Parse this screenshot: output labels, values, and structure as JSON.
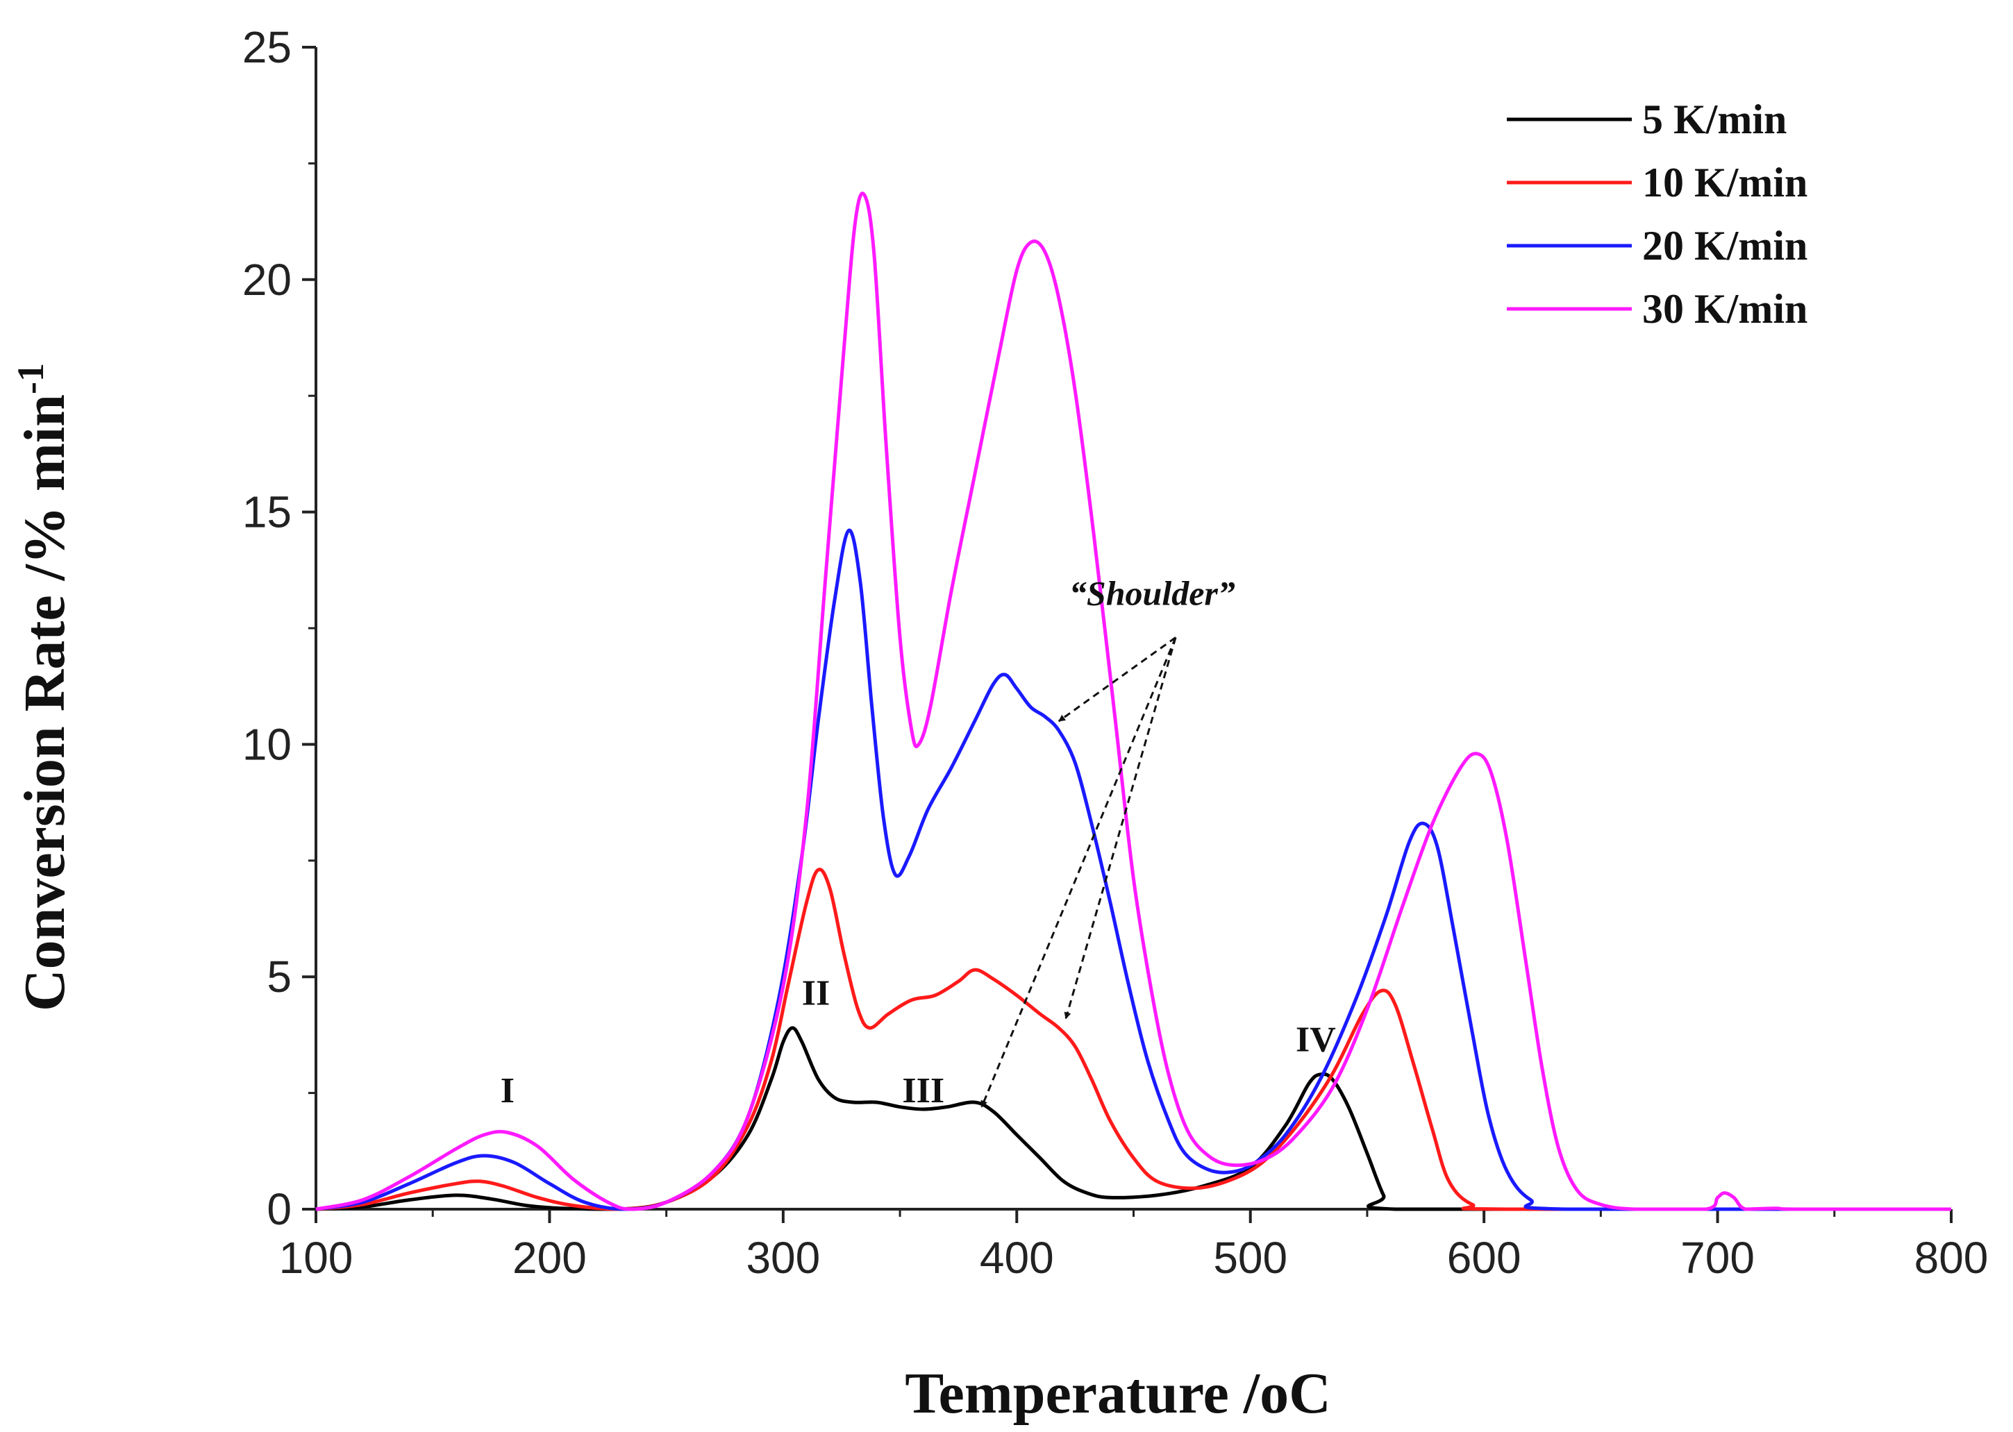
{
  "chart_data": {
    "type": "line",
    "title": "",
    "xlabel": "Temperature /",
    "xlabel_unit": "oC",
    "ylabel": "Conversion Rate /% min",
    "ylabel_sup": "-1",
    "xlim": [
      100,
      800
    ],
    "ylim": [
      0,
      25
    ],
    "xticks": [
      100,
      200,
      300,
      400,
      500,
      600,
      700,
      800
    ],
    "yticks": [
      0,
      5,
      10,
      15,
      20,
      25
    ],
    "legend_position": "top-right",
    "grid": false,
    "series": [
      {
        "name": "5 K/min",
        "color": "#000000",
        "points": [
          [
            100,
            0
          ],
          [
            120,
            0.05
          ],
          [
            140,
            0.2
          ],
          [
            160,
            0.3
          ],
          [
            175,
            0.22
          ],
          [
            190,
            0.08
          ],
          [
            205,
            0.02
          ],
          [
            230,
            0
          ],
          [
            250,
            0.15
          ],
          [
            270,
            0.7
          ],
          [
            285,
            1.6
          ],
          [
            295,
            2.8
          ],
          [
            300,
            3.6
          ],
          [
            304,
            3.9
          ],
          [
            308,
            3.6
          ],
          [
            315,
            2.8
          ],
          [
            322,
            2.4
          ],
          [
            330,
            2.3
          ],
          [
            340,
            2.3
          ],
          [
            350,
            2.2
          ],
          [
            360,
            2.15
          ],
          [
            370,
            2.2
          ],
          [
            382,
            2.3
          ],
          [
            390,
            2.1
          ],
          [
            400,
            1.6
          ],
          [
            410,
            1.1
          ],
          [
            420,
            0.6
          ],
          [
            430,
            0.35
          ],
          [
            440,
            0.25
          ],
          [
            460,
            0.3
          ],
          [
            480,
            0.5
          ],
          [
            500,
            0.9
          ],
          [
            515,
            1.8
          ],
          [
            525,
            2.7
          ],
          [
            530,
            2.9
          ],
          [
            535,
            2.8
          ],
          [
            542,
            2.2
          ],
          [
            550,
            1.2
          ],
          [
            557,
            0.3
          ],
          [
            562,
            0
          ],
          [
            700,
            0
          ],
          [
            800,
            0
          ]
        ]
      },
      {
        "name": "10 K/min",
        "color": "#ff1a1a",
        "points": [
          [
            100,
            0
          ],
          [
            120,
            0.1
          ],
          [
            140,
            0.35
          ],
          [
            160,
            0.55
          ],
          [
            170,
            0.6
          ],
          [
            180,
            0.5
          ],
          [
            195,
            0.25
          ],
          [
            210,
            0.08
          ],
          [
            230,
            0
          ],
          [
            250,
            0.15
          ],
          [
            270,
            0.7
          ],
          [
            285,
            1.8
          ],
          [
            295,
            3.2
          ],
          [
            302,
            4.8
          ],
          [
            310,
            6.6
          ],
          [
            315,
            7.3
          ],
          [
            320,
            6.9
          ],
          [
            326,
            5.5
          ],
          [
            332,
            4.3
          ],
          [
            337,
            3.9
          ],
          [
            345,
            4.2
          ],
          [
            355,
            4.5
          ],
          [
            365,
            4.6
          ],
          [
            375,
            4.9
          ],
          [
            382,
            5.15
          ],
          [
            390,
            4.95
          ],
          [
            400,
            4.6
          ],
          [
            410,
            4.2
          ],
          [
            418,
            3.9
          ],
          [
            425,
            3.5
          ],
          [
            432,
            2.8
          ],
          [
            440,
            1.9
          ],
          [
            450,
            1.1
          ],
          [
            460,
            0.6
          ],
          [
            475,
            0.45
          ],
          [
            490,
            0.6
          ],
          [
            505,
            1.0
          ],
          [
            520,
            1.8
          ],
          [
            535,
            2.9
          ],
          [
            548,
            4.2
          ],
          [
            556,
            4.7
          ],
          [
            562,
            4.4
          ],
          [
            570,
            3.1
          ],
          [
            578,
            1.7
          ],
          [
            585,
            0.6
          ],
          [
            595,
            0.1
          ],
          [
            610,
            0
          ],
          [
            800,
            0
          ]
        ]
      },
      {
        "name": "20 K/min",
        "color": "#1a1aff",
        "points": [
          [
            100,
            0
          ],
          [
            120,
            0.15
          ],
          [
            140,
            0.55
          ],
          [
            160,
            1.0
          ],
          [
            172,
            1.15
          ],
          [
            185,
            1.0
          ],
          [
            200,
            0.55
          ],
          [
            215,
            0.15
          ],
          [
            232,
            0
          ],
          [
            250,
            0.15
          ],
          [
            270,
            0.8
          ],
          [
            285,
            2.0
          ],
          [
            298,
            4.5
          ],
          [
            308,
            7.6
          ],
          [
            315,
            10.5
          ],
          [
            322,
            13.1
          ],
          [
            328,
            14.6
          ],
          [
            333,
            13.5
          ],
          [
            338,
            10.8
          ],
          [
            343,
            8.4
          ],
          [
            348,
            7.2
          ],
          [
            354,
            7.6
          ],
          [
            362,
            8.6
          ],
          [
            372,
            9.5
          ],
          [
            382,
            10.5
          ],
          [
            390,
            11.3
          ],
          [
            395,
            11.5
          ],
          [
            400,
            11.2
          ],
          [
            406,
            10.8
          ],
          [
            412,
            10.6
          ],
          [
            418,
            10.3
          ],
          [
            425,
            9.6
          ],
          [
            432,
            8.3
          ],
          [
            440,
            6.6
          ],
          [
            448,
            4.8
          ],
          [
            456,
            3.2
          ],
          [
            465,
            1.9
          ],
          [
            472,
            1.2
          ],
          [
            482,
            0.85
          ],
          [
            492,
            0.8
          ],
          [
            502,
            1.0
          ],
          [
            515,
            1.6
          ],
          [
            530,
            2.8
          ],
          [
            545,
            4.5
          ],
          [
            558,
            6.3
          ],
          [
            568,
            7.9
          ],
          [
            574,
            8.3
          ],
          [
            580,
            7.8
          ],
          [
            587,
            6.0
          ],
          [
            595,
            3.8
          ],
          [
            602,
            2.0
          ],
          [
            610,
            0.8
          ],
          [
            620,
            0.2
          ],
          [
            635,
            0
          ],
          [
            800,
            0
          ]
        ]
      },
      {
        "name": "30 K/min",
        "color": "#ff1aff",
        "points": [
          [
            100,
            0
          ],
          [
            120,
            0.2
          ],
          [
            140,
            0.7
          ],
          [
            160,
            1.3
          ],
          [
            172,
            1.6
          ],
          [
            182,
            1.65
          ],
          [
            195,
            1.35
          ],
          [
            210,
            0.65
          ],
          [
            225,
            0.15
          ],
          [
            235,
            0
          ],
          [
            250,
            0.15
          ],
          [
            270,
            0.8
          ],
          [
            285,
            2.0
          ],
          [
            300,
            4.8
          ],
          [
            310,
            8.5
          ],
          [
            318,
            13.5
          ],
          [
            326,
            18.5
          ],
          [
            331,
            21.3
          ],
          [
            335,
            21.8
          ],
          [
            339,
            20.5
          ],
          [
            344,
            16.5
          ],
          [
            350,
            12.3
          ],
          [
            355,
            10.3
          ],
          [
            358,
            10.0
          ],
          [
            363,
            10.8
          ],
          [
            372,
            13.3
          ],
          [
            382,
            15.8
          ],
          [
            392,
            18.3
          ],
          [
            400,
            20.2
          ],
          [
            406,
            20.8
          ],
          [
            412,
            20.6
          ],
          [
            418,
            19.6
          ],
          [
            425,
            17.6
          ],
          [
            433,
            14.5
          ],
          [
            442,
            10.6
          ],
          [
            450,
            7.1
          ],
          [
            458,
            4.6
          ],
          [
            465,
            2.9
          ],
          [
            473,
            1.7
          ],
          [
            482,
            1.15
          ],
          [
            492,
            0.95
          ],
          [
            505,
            1.05
          ],
          [
            518,
            1.5
          ],
          [
            535,
            2.6
          ],
          [
            550,
            4.3
          ],
          [
            565,
            6.5
          ],
          [
            578,
            8.3
          ],
          [
            590,
            9.5
          ],
          [
            597,
            9.8
          ],
          [
            603,
            9.4
          ],
          [
            610,
            7.9
          ],
          [
            618,
            5.3
          ],
          [
            625,
            3.0
          ],
          [
            632,
            1.3
          ],
          [
            640,
            0.4
          ],
          [
            650,
            0.1
          ],
          [
            665,
            0
          ],
          [
            695,
            0
          ],
          [
            700,
            0.25
          ],
          [
            703,
            0.35
          ],
          [
            707,
            0.25
          ],
          [
            712,
            0
          ],
          [
            725,
            0.02
          ],
          [
            735,
            0
          ],
          [
            800,
            0
          ]
        ]
      }
    ],
    "annotations": [
      {
        "label": "I",
        "x": 182,
        "y": 2.3
      },
      {
        "label": "II",
        "x": 314,
        "y": 4.4
      },
      {
        "label": "III",
        "x": 360,
        "y": 2.3
      },
      {
        "label": "IV",
        "x": 528,
        "y": 3.4
      },
      {
        "label": "“Shoulder”",
        "x": 458,
        "y": 13.0,
        "italic": true
      }
    ],
    "arrows": [
      {
        "from": [
          468,
          12.3
        ],
        "to": [
          418,
          10.5
        ]
      },
      {
        "from": [
          468,
          12.3
        ],
        "to": [
          421,
          4.1
        ]
      },
      {
        "from": [
          468,
          12.3
        ],
        "to": [
          385,
          2.2
        ]
      }
    ]
  }
}
